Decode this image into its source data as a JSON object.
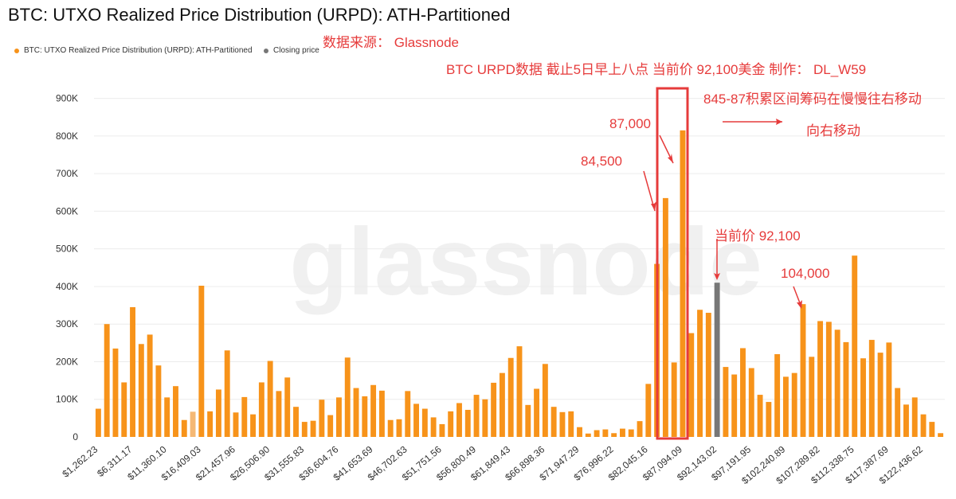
{
  "chart_data": {
    "type": "bar",
    "title": "BTC: UTXO Realized Price Distribution (URPD): ATH-Partitioned",
    "xlabel": "",
    "ylabel": "",
    "ylim": [
      0,
      950000
    ],
    "y_ticks": [
      0,
      100000,
      200000,
      300000,
      400000,
      500000,
      600000,
      700000,
      800000,
      900000
    ],
    "y_tick_labels": [
      "0",
      "100K",
      "200K",
      "300K",
      "400K",
      "500K",
      "600K",
      "700K",
      "800K",
      "900K"
    ],
    "x_tick_labels": [
      "$1,262.23",
      "$6,311.17",
      "$11,360.10",
      "$16,409.03",
      "$21,457.96",
      "$26,506.90",
      "$31,555.83",
      "$36,604.76",
      "$41,653.69",
      "$46,702.63",
      "$51,751.56",
      "$56,800.49",
      "$61,849.43",
      "$66,898.36",
      "$71,947.29",
      "$76,996.22",
      "$82,045.16",
      "$87,094.09",
      "$92,143.02",
      "$97,191.95",
      "$102,240.89",
      "$107,289.82",
      "$112,338.75",
      "$117,387.69",
      "$122,436.62"
    ],
    "series": [
      {
        "name": "BTC: UTXO Realized Price Distribution (URPD): ATH-Partitioned",
        "color": "#f7931a",
        "values": [
          75000,
          300000,
          235000,
          145000,
          345000,
          247000,
          272000,
          190000,
          105000,
          135000,
          45000,
          67000,
          402000,
          68000,
          126000,
          230000,
          65000,
          106000,
          60000,
          145000,
          202000,
          122000,
          158000,
          80000,
          40000,
          43000,
          99000,
          58000,
          105000,
          211000,
          130000,
          108000,
          138000,
          123000,
          45000,
          47000,
          122000,
          88000,
          75000,
          52000,
          34000,
          68000,
          90000,
          72000,
          112000,
          100000,
          144000,
          170000,
          210000,
          241000,
          85000,
          128000,
          194000,
          80000,
          66000,
          68000,
          26000,
          9000,
          18000,
          20000,
          10000,
          22000,
          20000,
          42000,
          141000,
          460000,
          635000,
          198000,
          815000,
          276000,
          338000,
          330000,
          410000,
          186000,
          166000,
          236000,
          183000,
          112000,
          93000,
          220000,
          160000,
          170000,
          353000,
          213000,
          308000,
          306000,
          285000,
          252000,
          482000,
          209000,
          258000,
          224000,
          251000,
          130000,
          86000,
          105000,
          60000,
          40000,
          10000
        ]
      }
    ],
    "closing_price_index": 72,
    "closing_price_value": 410000,
    "highlight_index": 11,
    "legend": [
      {
        "name": "BTC: UTXO Realized Price Distribution (URPD): ATH-Partitioned",
        "color": "#f7931a"
      },
      {
        "name": "Closing price",
        "color": "#777777"
      }
    ]
  },
  "annotations": {
    "source": "数据来源： Glassnode",
    "meta": "BTC URPD数据 截止5日早上八点 当前价 92,100美金 制作： DL_W59",
    "zone": "845-87积累区间筹码在慢慢往右移动",
    "move_right": "向右移动",
    "label_87000": "87,000",
    "label_84500": "84,500",
    "label_current": "当前价 92,100",
    "label_104000": "104,000",
    "annotation_color": "#e63b3b"
  },
  "watermark": "glassnode"
}
